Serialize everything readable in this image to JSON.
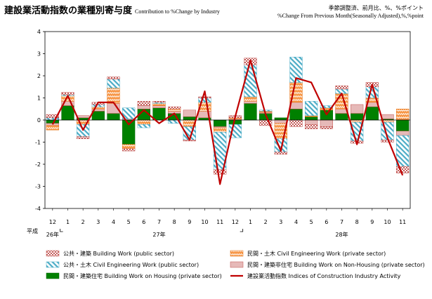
{
  "title": {
    "main": "建設業活動指数の業種別寄与度",
    "sub": "Contribution to %Change by Industry"
  },
  "units": {
    "line1": "季節調整済、前月比、%、%ポイント",
    "line2": "%Change From Previous Month(Seasonally Adjusted),%,%point"
  },
  "colors": {
    "public_building": "#c0504d",
    "public_civil": "#4bacc6",
    "private_civil": "#f79646",
    "private_nonhousing": "#e6b9b8",
    "private_housing": "#008000",
    "index_line": "#c00000"
  },
  "chart_data": {
    "type": "bar",
    "stacked": true,
    "categories": [
      "12",
      "1",
      "2",
      "3",
      "4",
      "5",
      "6",
      "7",
      "8",
      "9",
      "10",
      "11",
      "12",
      "1",
      "2",
      "3",
      "4",
      "5",
      "6",
      "7",
      "8",
      "9",
      "10",
      "11"
    ],
    "era_label": "平成",
    "year_labels": [
      {
        "label": "26年",
        "index": 0
      },
      {
        "label": "27年",
        "index": 7
      },
      {
        "label": "28年",
        "index": 19
      }
    ],
    "ylim": [
      -4,
      4
    ],
    "yticks": [
      -4,
      -3,
      -2,
      -1,
      0,
      1,
      2,
      3,
      4
    ],
    "series": [
      {
        "key": "private_housing",
        "name": "民間・建築住宅 Building Work on Housing (private sector)",
        "legend_jp": "民間・建築住宅",
        "legend_en": "Building Work on Housing (private sector)",
        "pattern": "solid",
        "values": [
          -0.15,
          0.65,
          0.1,
          0.4,
          0.3,
          -1.1,
          0.5,
          0.55,
          0.3,
          0.15,
          0.1,
          -0.3,
          -0.2,
          0.75,
          0.3,
          0.1,
          0.5,
          0.15,
          0.45,
          0.3,
          0.3,
          0.6,
          0.05,
          -0.5
        ]
      },
      {
        "key": "private_nonhousing",
        "name": "民間・建築非住宅 Building Work on Non-Housing (private sector)",
        "legend_jp": "民間・建築非住宅",
        "legend_en": "Building Work on Non-Housing (private sector)",
        "pattern": "solid-light",
        "values": [
          -0.1,
          0.2,
          0.1,
          0.1,
          0.45,
          0.05,
          0.15,
          0.1,
          0.1,
          0.3,
          0.3,
          -0.05,
          0.05,
          0.1,
          0.05,
          -0.15,
          0.3,
          -0.2,
          -0.3,
          0.2,
          0.4,
          0.2,
          0.2,
          -0.2
        ]
      },
      {
        "key": "private_civil",
        "name": "民間・土木 Civil Engineering Work (private sector)",
        "legend_jp": "民間・土木",
        "legend_en": "Civil Engineering Work (private sector)",
        "pattern": "zigzag",
        "values": [
          -0.2,
          0.25,
          -0.2,
          0.1,
          0.7,
          -0.2,
          -0.2,
          0.1,
          0.1,
          -0.3,
          0.4,
          -0.2,
          0.05,
          0.2,
          0.05,
          -0.7,
          0.9,
          0.05,
          0.1,
          0.7,
          -0.1,
          0.2,
          -0.1,
          0.5
        ]
      },
      {
        "key": "public_civil",
        "name": "公共・土木 Civil Engineering Work (public sector)",
        "legend_jp": "公共・土木",
        "legend_en": "Civil Engineering Work (public sector)",
        "pattern": "stripes",
        "values": [
          0.1,
          0.05,
          -0.55,
          0.1,
          0.4,
          0.5,
          -0.15,
          0.05,
          -0.15,
          -0.6,
          0.2,
          -1.7,
          -0.6,
          1.45,
          0.05,
          -0.6,
          1.15,
          0.65,
          0.1,
          0.2,
          -0.85,
          0.5,
          -0.8,
          -1.4
        ]
      },
      {
        "key": "public_building",
        "name": "公共・建築 Building Work (public sector)",
        "legend_jp": "公共・建築",
        "legend_en": "Building Work (public sector)",
        "pattern": "dots",
        "values": [
          0.15,
          0.1,
          -0.1,
          0.1,
          0.1,
          -0.1,
          0.2,
          0.05,
          0.1,
          -0.05,
          0.05,
          -0.2,
          0.1,
          0.3,
          -0.25,
          -0.1,
          -0.3,
          -0.2,
          -0.1,
          0.15,
          -0.1,
          0.2,
          -0.1,
          -0.3
        ]
      }
    ],
    "line_series": {
      "key": "index_line",
      "name": "建設業活動指数 Indices of Construction Industry Activity",
      "legend_jp": "建設業活動指数",
      "legend_en": "Indices of Construction Industry Activity",
      "values": [
        -0.2,
        1.1,
        -0.45,
        0.8,
        0.8,
        -0.2,
        0.45,
        -0.15,
        0.3,
        -0.9,
        1.3,
        -2.9,
        0.15,
        2.7,
        0.25,
        -1.4,
        1.9,
        1.7,
        0.25,
        1.2,
        -1.1,
        1.6,
        -0.8,
        -2.5
      ]
    },
    "legend_rows": [
      [
        "public_building",
        "private_civil"
      ],
      [
        "public_civil",
        "private_nonhousing"
      ],
      [
        "private_housing",
        "index_line"
      ]
    ]
  }
}
